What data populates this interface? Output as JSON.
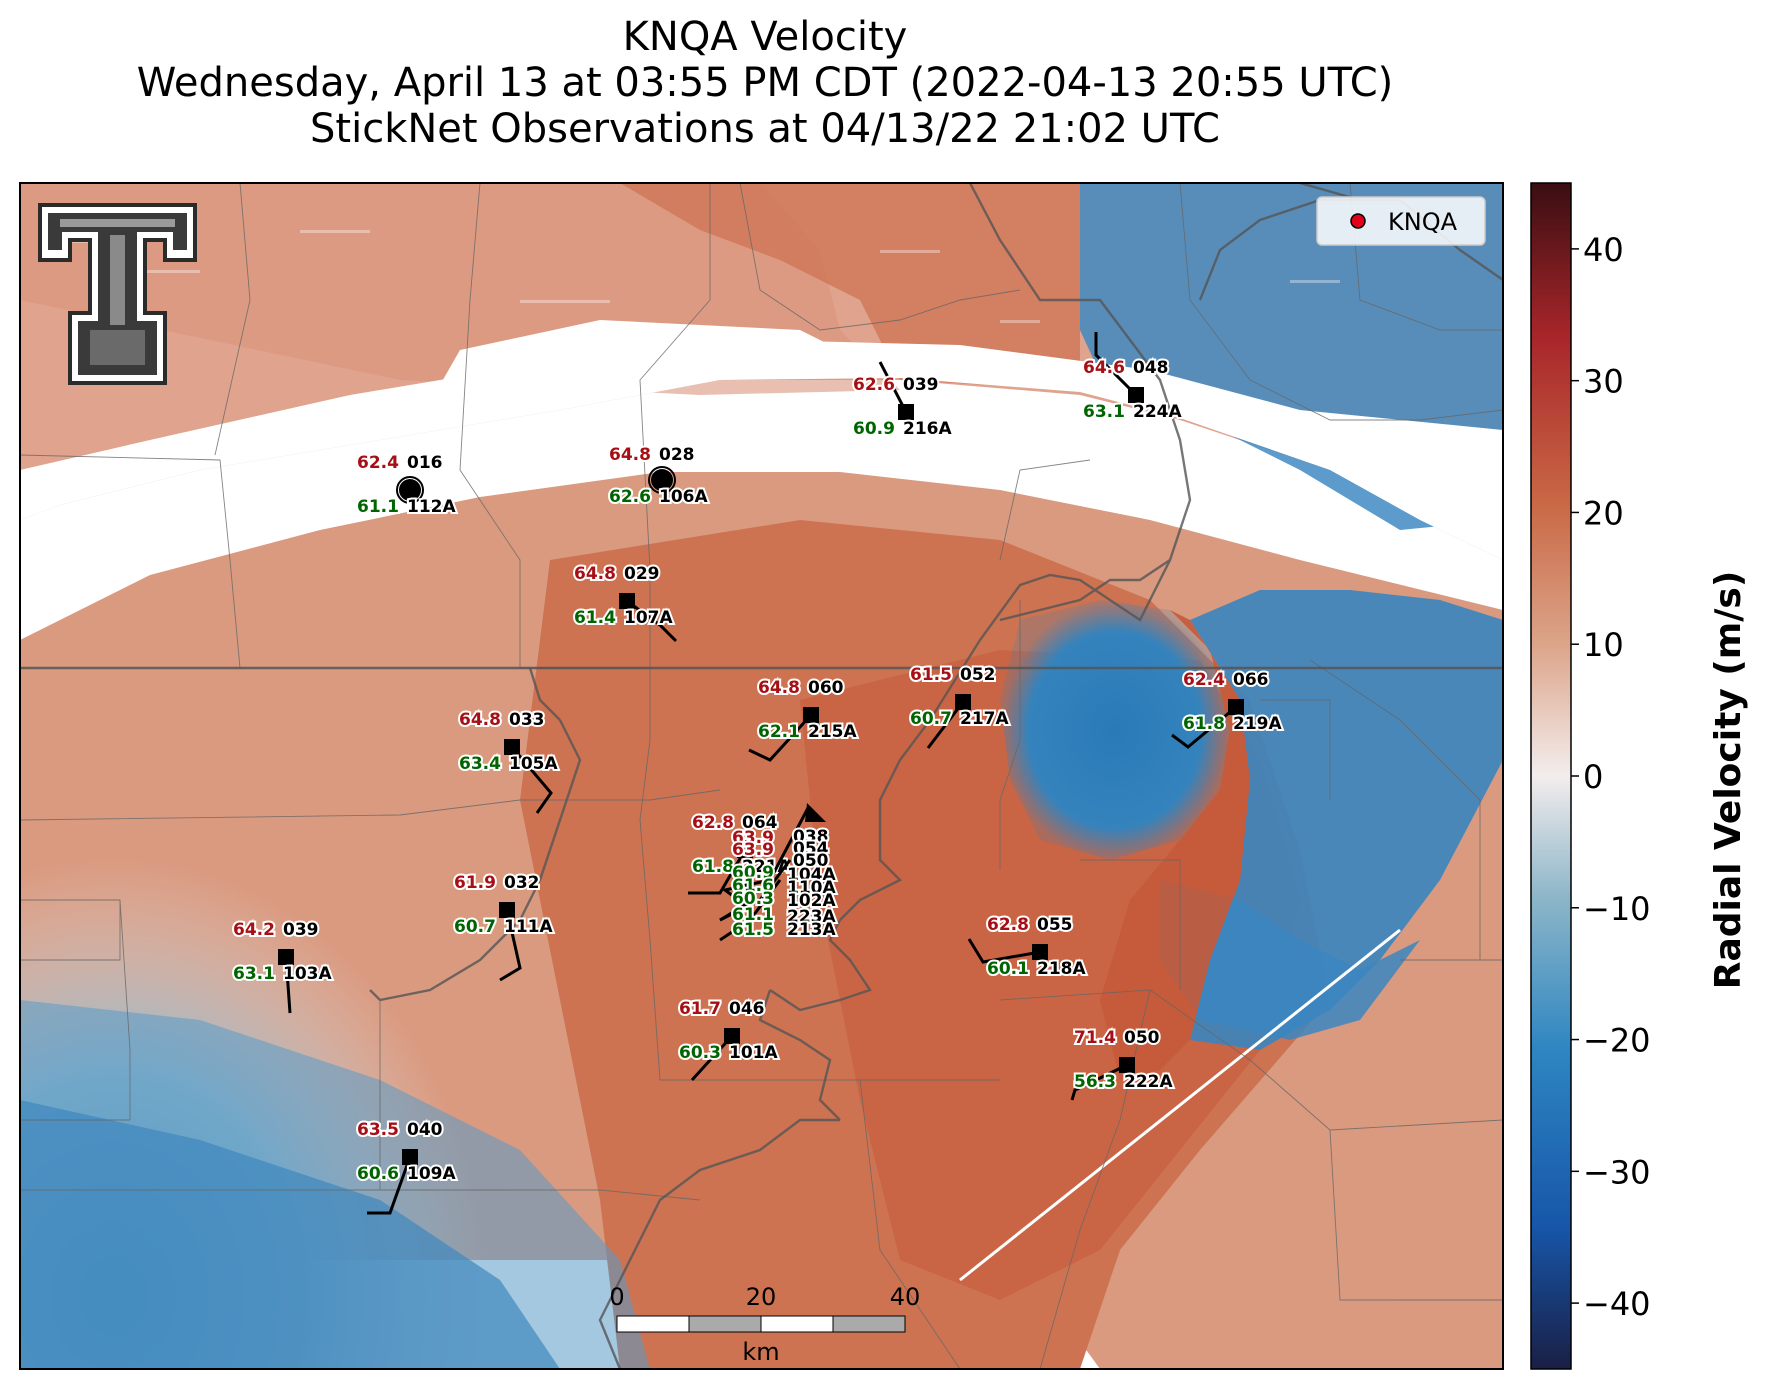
{
  "title": {
    "line1": "KNQA Velocity",
    "line2": "Wednesday, April 13 at 03:55 PM CDT (2022-04-13 20:55 UTC)",
    "line3": "StickNet Observations at 04/13/22 21:02 UTC"
  },
  "legend": {
    "label": "KNQA",
    "marker_color": "#e3001b"
  },
  "colorbar": {
    "label": "Radial Velocity (m/s)",
    "min": -45,
    "max": 45,
    "ticks": [
      "40",
      "30",
      "20",
      "10",
      "0",
      "−10",
      "−20",
      "−30",
      "−40"
    ],
    "tick_values": [
      40,
      30,
      20,
      10,
      0,
      -10,
      -20,
      -30,
      -40
    ],
    "colors": [
      "#1a1f45",
      "#1756a9",
      "#2e86c1",
      "#8fb7c9",
      "#f3eded",
      "#dca58a",
      "#c96845",
      "#a8262a",
      "#3a0e12"
    ]
  },
  "scalebar": {
    "ticks": [
      "0",
      "20",
      "40"
    ],
    "unit": "km"
  },
  "colors": {
    "temperature": "#a50f15",
    "dewpoint": "#006400",
    "station": "#000000",
    "receding": "#c8603c",
    "approaching": "#2f7fba"
  },
  "stations": [
    {
      "id": "112A",
      "code": "016",
      "temp": "62.4",
      "dew": "61.1",
      "shape": "circle"
    },
    {
      "id": "106A",
      "code": "028",
      "temp": "64.8",
      "dew": "62.6",
      "shape": "circle"
    },
    {
      "id": "216A",
      "code": "039",
      "temp": "62.6",
      "dew": "60.9",
      "shape": "square"
    },
    {
      "id": "224A",
      "code": "048",
      "temp": "64.6",
      "dew": "63.1",
      "shape": "square"
    },
    {
      "id": "107A",
      "code": "029",
      "temp": "64.8",
      "dew": "61.4",
      "shape": "square"
    },
    {
      "id": "215A",
      "code": "060",
      "temp": "64.8",
      "dew": "62.1",
      "shape": "square"
    },
    {
      "id": "217A",
      "code": "052",
      "temp": "61.5",
      "dew": "60.7",
      "shape": "square"
    },
    {
      "id": "219A",
      "code": "066",
      "temp": "62.4",
      "dew": "61.8",
      "shape": "square"
    },
    {
      "id": "105A",
      "code": "033",
      "temp": "64.8",
      "dew": "63.4",
      "shape": "square"
    },
    {
      "id": "221A",
      "code": "064",
      "temp": "62.8",
      "dew": "61.8",
      "shape": "square"
    },
    {
      "id": "111A",
      "code": "032",
      "temp": "61.9",
      "dew": "60.7",
      "shape": "square"
    },
    {
      "id": "103A",
      "code": "039",
      "temp": "64.2",
      "dew": "63.1",
      "shape": "square"
    },
    {
      "id": "218A",
      "code": "055",
      "temp": "62.8",
      "dew": "60.1",
      "shape": "square"
    },
    {
      "id": "101A",
      "code": "046",
      "temp": "61.7",
      "dew": "60.3",
      "shape": "square"
    },
    {
      "id": "222A",
      "code": "050",
      "temp": "71.4",
      "dew": "56.3",
      "shape": "square"
    },
    {
      "id": "109A",
      "code": "040",
      "temp": "63.5",
      "dew": "60.6",
      "shape": "square"
    }
  ],
  "cluster_labels": {
    "codes": [
      "038",
      "054",
      "050"
    ],
    "temps": [
      "63.9",
      "63.9"
    ],
    "ids": [
      "104A",
      "110A",
      "102A",
      "223A",
      "213A"
    ],
    "dews": [
      "60.9",
      "61.6",
      "60.3",
      "61.1",
      "61.5"
    ]
  }
}
